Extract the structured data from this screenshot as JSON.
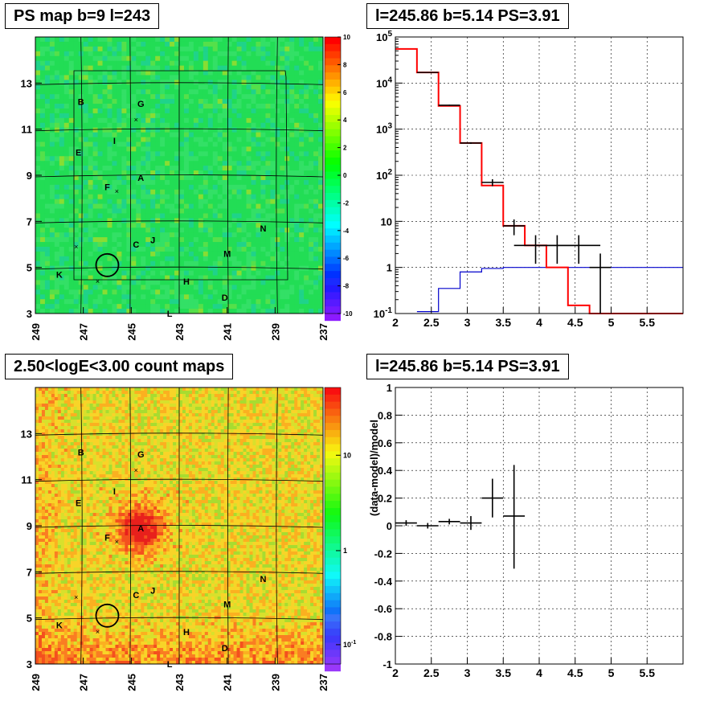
{
  "panels": {
    "top_left_title": "PS map b=9 l=243",
    "top_right_title": "l=245.86 b=5.14 PS=3.91",
    "bottom_left_title": "2.50<logE<3.00 count maps",
    "bottom_right_title": "l=245.86 b=5.14 PS=3.91"
  },
  "colors": {
    "data": "#000000",
    "model_total": "#ff0000",
    "model_source": "#0000cc",
    "grid": "#000000"
  },
  "chart_data": [
    {
      "type": "heatmap",
      "title": "PS map b=9 l=243",
      "x_ticks": [
        "249",
        "247",
        "245",
        "243",
        "241",
        "239",
        "237"
      ],
      "y_ticks": [
        "3",
        "5",
        "7",
        "9",
        "11",
        "13"
      ],
      "xlim": [
        249,
        237
      ],
      "ylim": [
        3,
        15
      ],
      "colorbar_ticks": [
        "10",
        "8",
        "6",
        "4",
        "2",
        "0",
        "-2",
        "-4",
        "-6",
        "-8",
        "-10"
      ],
      "colorbar_range": [
        -10,
        10
      ],
      "background_value": 0.3,
      "source_labels": [
        {
          "label": "B",
          "l": 247.1,
          "b": 12.2
        },
        {
          "label": "G",
          "l": 244.6,
          "b": 12.1
        },
        {
          "label": "I",
          "l": 245.7,
          "b": 10.5
        },
        {
          "label": "E",
          "l": 247.2,
          "b": 10.0
        },
        {
          "label": "A",
          "l": 244.6,
          "b": 8.9
        },
        {
          "label": "F",
          "l": 246.0,
          "b": 8.5
        },
        {
          "label": "N",
          "l": 239.5,
          "b": 6.7
        },
        {
          "label": "C",
          "l": 244.8,
          "b": 6.0
        },
        {
          "label": "J",
          "l": 244.1,
          "b": 6.2
        },
        {
          "label": "M",
          "l": 241.0,
          "b": 5.6
        },
        {
          "label": "K",
          "l": 248.0,
          "b": 4.7
        },
        {
          "label": "H",
          "l": 242.7,
          "b": 4.4
        },
        {
          "label": "D",
          "l": 241.1,
          "b": 3.7
        },
        {
          "label": "L",
          "l": 243.4,
          "b": 3.0
        }
      ],
      "crosses": [
        {
          "l": 244.8,
          "b": 11.4
        },
        {
          "l": 245.6,
          "b": 8.3
        },
        {
          "l": 247.3,
          "b": 5.9
        },
        {
          "l": 246.4,
          "b": 4.4
        }
      ],
      "circle": {
        "l": 246.0,
        "b": 5.1
      }
    },
    {
      "type": "line",
      "title": "l=245.86 b=5.14 PS=3.91",
      "xlabel": "",
      "ylabel": "",
      "x_ticks": [
        "2",
        "2.5",
        "3",
        "3.5",
        "4",
        "4.5",
        "5",
        "5.5"
      ],
      "y_ticks": [
        "10^-1",
        "1",
        "10",
        "10^2",
        "10^3",
        "10^4",
        "10^5"
      ],
      "xlim": [
        2,
        6
      ],
      "ylim": [
        0.1,
        100000
      ],
      "y_scale": "log",
      "grid": true,
      "model_total_steps": {
        "edges": [
          2.0,
          2.3,
          2.6,
          2.9,
          3.2,
          3.5,
          3.8,
          4.1,
          4.4,
          4.7,
          5.0,
          6.0
        ],
        "values": [
          55000,
          17000,
          3200,
          500,
          60,
          8,
          3,
          1,
          0.15,
          0.1,
          0.1
        ]
      },
      "model_source_steps": {
        "edges": [
          2.3,
          2.6,
          2.9,
          3.2,
          3.5,
          3.8,
          4.1,
          4.4,
          4.7,
          5.0,
          6.0
        ],
        "values": [
          0.11,
          0.35,
          0.8,
          0.95,
          1.0,
          1.0,
          1.0,
          1.0,
          1.0,
          1.0
        ]
      },
      "data_points": [
        {
          "x": 2.45,
          "y": 17000,
          "xerr": 0.15,
          "ylo": 16700,
          "yhi": 17300
        },
        {
          "x": 2.75,
          "y": 3300,
          "xerr": 0.15,
          "ylo": 3200,
          "yhi": 3400
        },
        {
          "x": 3.05,
          "y": 500,
          "xerr": 0.15,
          "ylo": 480,
          "yhi": 520
        },
        {
          "x": 3.35,
          "y": 70,
          "xerr": 0.15,
          "ylo": 58,
          "yhi": 82
        },
        {
          "x": 3.65,
          "y": 8,
          "xerr": 0.15,
          "ylo": 5,
          "yhi": 11
        },
        {
          "x": 3.95,
          "y": 3,
          "xerr": 0.3,
          "ylo": 1.2,
          "yhi": 5
        },
        {
          "x": 4.25,
          "y": 3,
          "xerr": 0.3,
          "ylo": 1.2,
          "yhi": 5
        },
        {
          "x": 4.55,
          "y": 3,
          "xerr": 0.3,
          "ylo": 1.2,
          "yhi": 5
        },
        {
          "x": 4.85,
          "y": 1,
          "xerr": 0.15,
          "ylo": 0.1,
          "yhi": 2
        }
      ]
    },
    {
      "type": "heatmap",
      "title": "2.50<logE<3.00 count maps",
      "x_ticks": [
        "249",
        "247",
        "245",
        "243",
        "241",
        "239",
        "237"
      ],
      "y_ticks": [
        "3",
        "5",
        "7",
        "9",
        "11",
        "13"
      ],
      "xlim": [
        249,
        237
      ],
      "ylim": [
        3,
        15
      ],
      "colorbar_ticks": [
        "10",
        "1",
        "10^-1"
      ],
      "colorbar_scale": "log",
      "hotspot": {
        "l": 244.6,
        "b": 8.9
      },
      "source_labels": [
        {
          "label": "B",
          "l": 247.1,
          "b": 12.2
        },
        {
          "label": "G",
          "l": 244.6,
          "b": 12.1
        },
        {
          "label": "I",
          "l": 245.7,
          "b": 10.5
        },
        {
          "label": "E",
          "l": 247.2,
          "b": 10.0
        },
        {
          "label": "A",
          "l": 244.6,
          "b": 8.9
        },
        {
          "label": "F",
          "l": 246.0,
          "b": 8.5
        },
        {
          "label": "N",
          "l": 239.5,
          "b": 6.7
        },
        {
          "label": "C",
          "l": 244.8,
          "b": 6.0
        },
        {
          "label": "J",
          "l": 244.1,
          "b": 6.2
        },
        {
          "label": "M",
          "l": 241.0,
          "b": 5.6
        },
        {
          "label": "K",
          "l": 248.0,
          "b": 4.7
        },
        {
          "label": "H",
          "l": 242.7,
          "b": 4.4
        },
        {
          "label": "D",
          "l": 241.1,
          "b": 3.7
        },
        {
          "label": "L",
          "l": 243.4,
          "b": 3.0
        }
      ],
      "crosses": [
        {
          "l": 244.8,
          "b": 11.4
        },
        {
          "l": 245.6,
          "b": 8.3
        },
        {
          "l": 247.3,
          "b": 5.9
        },
        {
          "l": 246.4,
          "b": 4.4
        }
      ],
      "circle": {
        "l": 246.0,
        "b": 5.1
      }
    },
    {
      "type": "scatter",
      "title": "l=245.86 b=5.14 PS=3.91",
      "xlabel": "",
      "ylabel": "(data-model)/model",
      "x_ticks": [
        "2",
        "2.5",
        "3",
        "3.5",
        "4",
        "4.5",
        "5",
        "5.5"
      ],
      "y_ticks": [
        "-1",
        "-0.8",
        "-0.6",
        "-0.4",
        "-0.2",
        "0",
        "0.2",
        "0.4",
        "0.6",
        "0.8",
        "1"
      ],
      "xlim": [
        2,
        6
      ],
      "ylim": [
        -1,
        1
      ],
      "grid": true,
      "data_points": [
        {
          "x": 2.15,
          "y": 0.02,
          "xerr": 0.15,
          "ylo": 0.0,
          "yhi": 0.04
        },
        {
          "x": 2.45,
          "y": 0.0,
          "xerr": 0.15,
          "ylo": -0.02,
          "yhi": 0.02
        },
        {
          "x": 2.75,
          "y": 0.03,
          "xerr": 0.15,
          "ylo": 0.01,
          "yhi": 0.05
        },
        {
          "x": 3.05,
          "y": 0.02,
          "xerr": 0.15,
          "ylo": -0.03,
          "yhi": 0.07
        },
        {
          "x": 3.35,
          "y": 0.2,
          "xerr": 0.15,
          "ylo": 0.06,
          "yhi": 0.34
        },
        {
          "x": 3.65,
          "y": 0.07,
          "xerr": 0.15,
          "ylo": -0.31,
          "yhi": 0.44
        }
      ]
    }
  ]
}
